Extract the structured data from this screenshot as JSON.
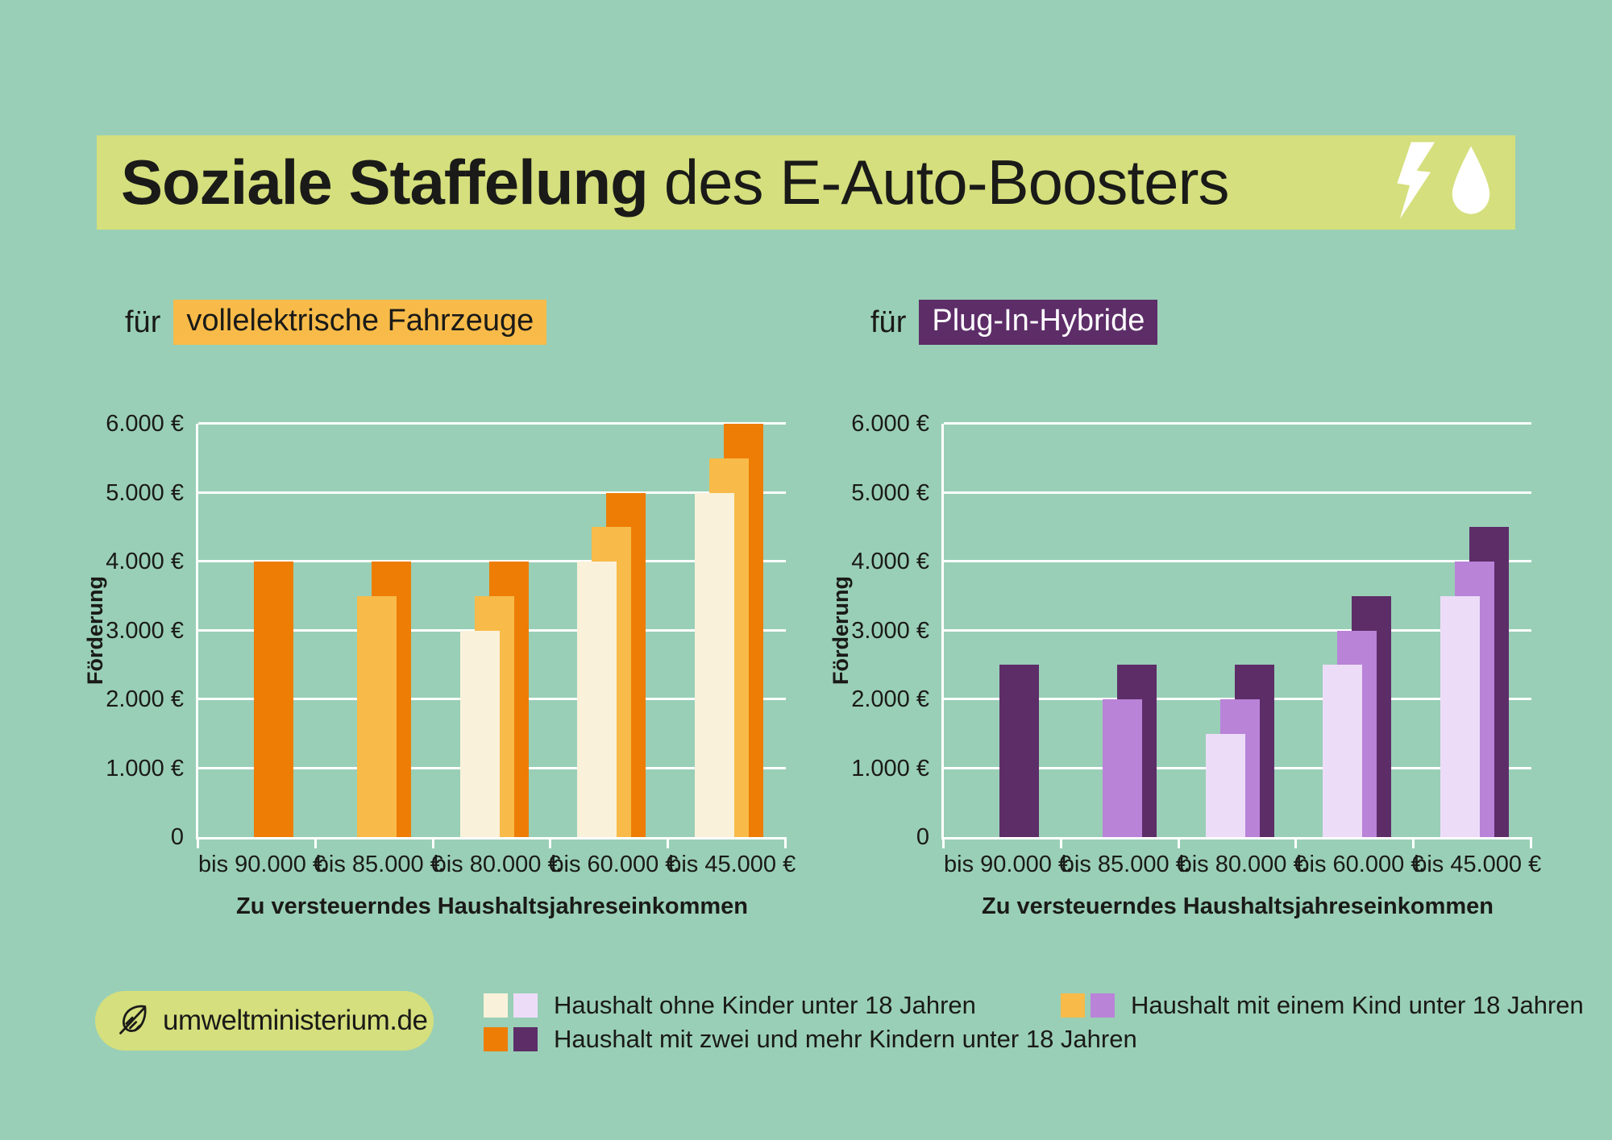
{
  "page": {
    "bg": "#99CFB6"
  },
  "banner": {
    "bg": "#D5DF7D",
    "title_bold": "Soziale Staffelung",
    "title_regular": "des E-Auto-Boosters",
    "icons": [
      {
        "name": "lightning-icon",
        "color": "#FFFFFF"
      },
      {
        "name": "drop-icon",
        "color": "#FFFFFF"
      }
    ]
  },
  "legend": {
    "items": [
      {
        "label": "Haushalt ohne Kinder unter 18 Jahren",
        "swatches": [
          "#FAF1DA",
          "#EDDCF8"
        ]
      },
      {
        "label": "Haushalt mit einem Kind unter 18 Jahren",
        "swatches": [
          "#F8BB49",
          "#B983D8"
        ]
      },
      {
        "label": "Haushalt mit zwei und mehr Kindern unter 18 Jahren",
        "swatches": [
          "#EE7D05",
          "#5D2D68"
        ]
      }
    ]
  },
  "footer": {
    "site_label": "umweltministerium.de",
    "icon": "leaf-icon",
    "bg": "#D5DF7D"
  },
  "chart_data": [
    {
      "type": "bar",
      "title": "für vollelektrische Fahrzeuge",
      "subtitle": {
        "prefix": "für",
        "label": "vollelektrische Fahrzeuge",
        "highlight_bg": "#F8BB49",
        "highlight_fg": "#1A1A18"
      },
      "categories": [
        "bis 90.000 €",
        "bis 85.000 €",
        "bis 80.000 €",
        "bis 60.000 €",
        "bis 45.000 €"
      ],
      "series": [
        {
          "name": "Haushalt ohne Kinder unter 18 Jahren",
          "color": "#FAF1DA",
          "values": [
            null,
            null,
            3000,
            4000,
            5000
          ]
        },
        {
          "name": "Haushalt mit einem Kind unter 18 Jahren",
          "color": "#F8BB49",
          "values": [
            null,
            3500,
            3500,
            4500,
            5500
          ]
        },
        {
          "name": "Haushalt mit zwei und mehr Kindern unter 18 Jahren",
          "color": "#EE7D05",
          "values": [
            4000,
            4000,
            4000,
            5000,
            6000
          ]
        }
      ],
      "xlabel": "Zu versteuerndes Haushaltsjahreseinkommen",
      "ylabel": "Förderung",
      "ylim": [
        0,
        6000
      ],
      "ytick_values": [
        6000,
        5000,
        4000,
        3000,
        2000,
        1000,
        0
      ],
      "ytick_labels": [
        "6.000 €",
        "5.000 €",
        "4.000 €",
        "3.000 €",
        "2.000 €",
        "1.000 €",
        "0"
      ],
      "grid": true,
      "gridline_color": "#FFFFFF",
      "legend_position": "bottom"
    },
    {
      "type": "bar",
      "title": "für Plug-In-Hybride",
      "subtitle": {
        "prefix": "für",
        "label": "Plug-In-Hybride",
        "highlight_bg": "#5D2D68",
        "highlight_fg": "#FFFFFF"
      },
      "categories": [
        "bis 90.000 €",
        "bis 85.000 €",
        "bis 80.000 €",
        "bis 60.000 €",
        "bis 45.000 €"
      ],
      "series": [
        {
          "name": "Haushalt ohne Kinder unter 18 Jahren",
          "color": "#EDDCF8",
          "values": [
            null,
            null,
            1500,
            2500,
            3500
          ]
        },
        {
          "name": "Haushalt mit einem Kind unter 18 Jahren",
          "color": "#B983D8",
          "values": [
            null,
            2000,
            2000,
            3000,
            4000
          ]
        },
        {
          "name": "Haushalt mit zwei und mehr Kindern unter 18 Jahren",
          "color": "#5D2D68",
          "values": [
            2500,
            2500,
            2500,
            3500,
            4500
          ]
        }
      ],
      "xlabel": "Zu versteuerndes Haushaltsjahreseinkommen",
      "ylabel": "Förderung",
      "ylim": [
        0,
        6000
      ],
      "ytick_values": [
        6000,
        5000,
        4000,
        3000,
        2000,
        1000,
        0
      ],
      "ytick_labels": [
        "6.000 €",
        "5.000 €",
        "4.000 €",
        "3.000 €",
        "2.000 €",
        "1.000 €",
        "0"
      ],
      "grid": true,
      "gridline_color": "#FFFFFF",
      "legend_position": "bottom"
    }
  ]
}
